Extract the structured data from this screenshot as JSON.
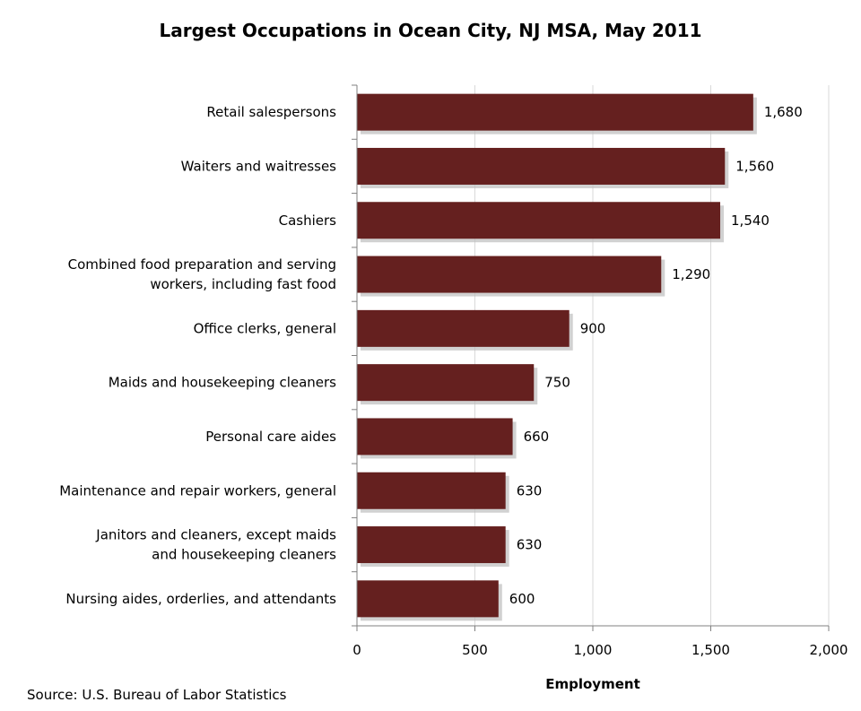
{
  "chart_data": {
    "type": "bar",
    "orientation": "horizontal",
    "title": "Largest Occupations in Ocean City, NJ MSA, May 2011",
    "xlabel": "Employment",
    "ylabel": "",
    "xlim": [
      0,
      2000
    ],
    "xticks": [
      0,
      500,
      1000,
      1500,
      2000
    ],
    "xtick_labels": [
      "0",
      "500",
      "1,000",
      "1,500",
      "2,000"
    ],
    "grid": true,
    "legend": "none",
    "bar_color": "#65201f",
    "shadow_color": "#bdbdbd",
    "grid_color": "#d9d9d9",
    "categories": [
      [
        "Retail salespersons"
      ],
      [
        "Waiters and  waitresses"
      ],
      [
        "Cashiers"
      ],
      [
        "Combined food preparation and serving",
        "workers, including fast food"
      ],
      [
        "Office clerks, general"
      ],
      [
        "Maids and housekeeping cleaners"
      ],
      [
        "Personal care aides"
      ],
      [
        "Maintenance and repair workers, general"
      ],
      [
        "Janitors and cleaners, except maids",
        "and housekeeping cleaners"
      ],
      [
        "Nursing aides, orderlies, and attendants"
      ]
    ],
    "values": [
      1680,
      1560,
      1540,
      1290,
      900,
      750,
      660,
      630,
      630,
      600
    ],
    "value_labels": [
      "1,680",
      "1,560",
      "1,540",
      "1,290",
      "900",
      "750",
      "660",
      "630",
      "630",
      "600"
    ]
  },
  "source": "Source:  U.S. Bureau of Labor Statistics"
}
